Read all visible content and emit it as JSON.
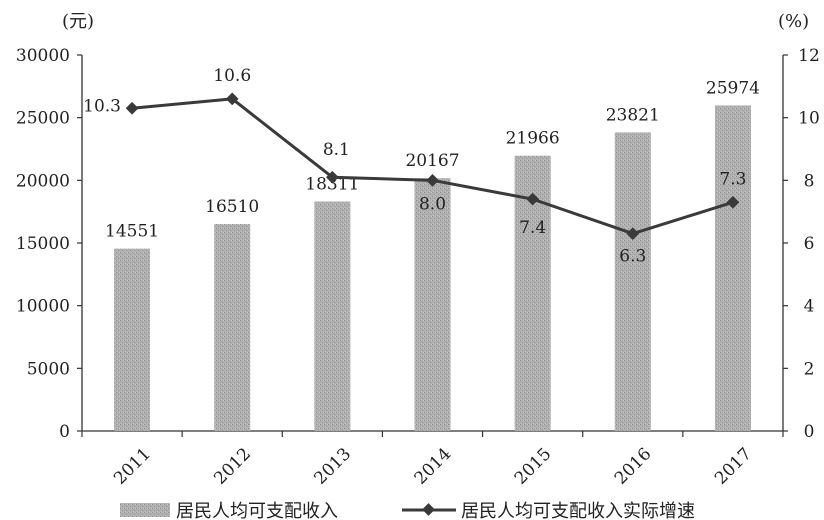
{
  "chart_data": {
    "type": "bar+line",
    "categories": [
      "2011",
      "2012",
      "2013",
      "2014",
      "2015",
      "2016",
      "2017"
    ],
    "series": [
      {
        "name": "居民人均可支配收入",
        "type": "bar",
        "axis": "left",
        "values": [
          14551,
          16510,
          18311,
          20167,
          21966,
          23821,
          25974
        ],
        "labels": [
          "14551",
          "16510",
          "18311",
          "20167",
          "21966",
          "23821",
          "25974"
        ]
      },
      {
        "name": "居民人均可支配收入实际增速",
        "type": "line",
        "axis": "right",
        "values": [
          10.3,
          10.6,
          8.1,
          8.0,
          7.4,
          6.3,
          7.3
        ],
        "labels": [
          "10.3",
          "10.6",
          "8.1",
          "8.0",
          "7.4",
          "6.3",
          "7.3"
        ]
      }
    ],
    "left_axis": {
      "unit": "(元)",
      "ylim": [
        0,
        30000
      ],
      "ticks": [
        "0",
        "5000",
        "10000",
        "15000",
        "20000",
        "25000",
        "30000"
      ]
    },
    "right_axis": {
      "unit": "(%)",
      "ylim": [
        0,
        12
      ],
      "ticks": [
        "0",
        "2",
        "4",
        "6",
        "8",
        "10",
        "12"
      ]
    },
    "legend": {
      "position": "bottom",
      "items": [
        "居民人均可支配收入",
        "居民人均可支配收入实际增速"
      ]
    },
    "colors": {
      "bar": "#a9a9a9",
      "line": "#3a3a3a",
      "axis": "#333333"
    },
    "grid": false
  }
}
